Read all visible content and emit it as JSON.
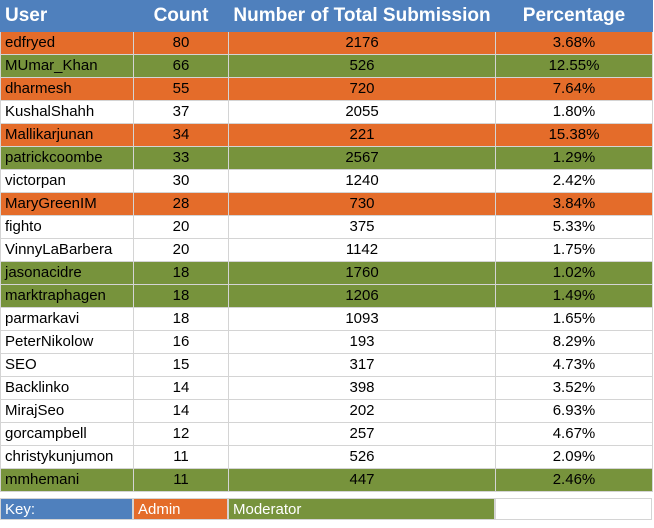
{
  "colors": {
    "header": "#4f80bd",
    "admin": "#e46c2a",
    "moderator": "#77933c",
    "plain": "#ffffff"
  },
  "headers": {
    "user": "User",
    "count": "Count",
    "total": "Number of Total Submission",
    "percentage": "Percentage"
  },
  "rows": [
    {
      "user": "edfryed",
      "count": "80",
      "total": "2176",
      "percentage": "3.68%",
      "role": "admin"
    },
    {
      "user": "MUmar_Khan",
      "count": "66",
      "total": "526",
      "percentage": "12.55%",
      "role": "moderator"
    },
    {
      "user": "dharmesh",
      "count": "55",
      "total": "720",
      "percentage": "7.64%",
      "role": "admin"
    },
    {
      "user": "KushalShahh",
      "count": "37",
      "total": "2055",
      "percentage": "1.80%",
      "role": "none"
    },
    {
      "user": "Mallikarjunan",
      "count": "34",
      "total": "221",
      "percentage": "15.38%",
      "role": "admin"
    },
    {
      "user": "patrickcoombe",
      "count": "33",
      "total": "2567",
      "percentage": "1.29%",
      "role": "moderator"
    },
    {
      "user": "victorpan",
      "count": "30",
      "total": "1240",
      "percentage": "2.42%",
      "role": "none"
    },
    {
      "user": "MaryGreenIM",
      "count": "28",
      "total": "730",
      "percentage": "3.84%",
      "role": "admin"
    },
    {
      "user": "fighto",
      "count": "20",
      "total": "375",
      "percentage": "5.33%",
      "role": "none"
    },
    {
      "user": "VinnyLaBarbera",
      "count": "20",
      "total": "1142",
      "percentage": "1.75%",
      "role": "none"
    },
    {
      "user": "jasonacidre",
      "count": "18",
      "total": "1760",
      "percentage": "1.02%",
      "role": "moderator"
    },
    {
      "user": "marktraphagen",
      "count": "18",
      "total": "1206",
      "percentage": "1.49%",
      "role": "moderator"
    },
    {
      "user": "parmarkavi",
      "count": "18",
      "total": "1093",
      "percentage": "1.65%",
      "role": "none"
    },
    {
      "user": "PeterNikolow",
      "count": "16",
      "total": "193",
      "percentage": "8.29%",
      "role": "none"
    },
    {
      "user": "SEO",
      "count": "15",
      "total": "317",
      "percentage": "4.73%",
      "role": "none"
    },
    {
      "user": "Backlinko",
      "count": "14",
      "total": "398",
      "percentage": "3.52%",
      "role": "none"
    },
    {
      "user": "MirajSeo",
      "count": "14",
      "total": "202",
      "percentage": "6.93%",
      "role": "none"
    },
    {
      "user": "gorcampbell",
      "count": "12",
      "total": "257",
      "percentage": "4.67%",
      "role": "none"
    },
    {
      "user": "christykunjumon",
      "count": "11",
      "total": "526",
      "percentage": "2.09%",
      "role": "none"
    },
    {
      "user": "mmhemani",
      "count": "11",
      "total": "447",
      "percentage": "2.46%",
      "role": "moderator"
    }
  ],
  "key": {
    "label": "Key:",
    "admin": "Admin",
    "moderator": "Moderator"
  }
}
